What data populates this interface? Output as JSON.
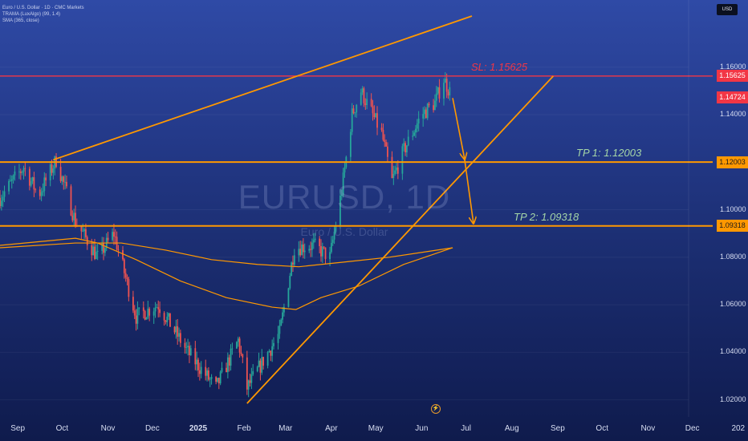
{
  "legend": {
    "line1": "Euro / U.S. Dollar · 1D · CMC Markets",
    "line2": "TRAMA (LuxAlgo) (99, 1.4)",
    "line3": "SMA (365, close)"
  },
  "currency_badge": "USD",
  "watermark": {
    "symbol": "EURUSD, 1D",
    "name": "Euro / U.S. Dollar"
  },
  "colors": {
    "up": "#26a69a",
    "down": "#ef5350",
    "sl_line": "#f23645",
    "orange": "#ff9800",
    "tp_text": "#a5d6a7"
  },
  "levels": {
    "sl": {
      "label": "SL: 1.15625",
      "value": 1.15625,
      "tag": "1.15625"
    },
    "current": {
      "value": 1.14724,
      "tag": "1.14724"
    },
    "tp1": {
      "label": "TP 1: 1.12003",
      "value": 1.12003,
      "tag": "1.12003"
    },
    "tp2": {
      "label": "TP 2: 1.09318",
      "value": 1.09318,
      "tag": "1.09318"
    }
  },
  "chart_data": {
    "type": "candlestick",
    "title": "EURUSD, 1D",
    "x_labels": [
      "Sep",
      "Oct",
      "Nov",
      "Dec",
      "2025",
      "Feb",
      "Mar",
      "Apr",
      "May",
      "Jun",
      "Jul",
      "Aug",
      "Sep",
      "Oct",
      "Nov",
      "Dec",
      "202"
    ],
    "y_ticks": [
      "1.16000",
      "1.14000",
      "1.10000",
      "1.08000",
      "1.06000",
      "1.04000",
      "1.02000"
    ],
    "y_tick_values": [
      1.16,
      1.14,
      1.1,
      1.08,
      1.06,
      1.04,
      1.02
    ],
    "ylim": [
      1.0128,
      1.1815
    ],
    "price_path": [
      {
        "date": "2024-08-20",
        "close": 1.105
      },
      {
        "date": "2024-09-05",
        "close": 1.118
      },
      {
        "date": "2024-09-15",
        "close": 1.106
      },
      {
        "date": "2024-09-27",
        "close": 1.121
      },
      {
        "date": "2024-10-10",
        "close": 1.095
      },
      {
        "date": "2024-10-25",
        "close": 1.08
      },
      {
        "date": "2024-11-05",
        "close": 1.09
      },
      {
        "date": "2024-11-20",
        "close": 1.055
      },
      {
        "date": "2024-12-05",
        "close": 1.06
      },
      {
        "date": "2024-12-25",
        "close": 1.04
      },
      {
        "date": "2025-01-13",
        "close": 1.025
      },
      {
        "date": "2025-01-28",
        "close": 1.045
      },
      {
        "date": "2025-02-03",
        "close": 1.025
      },
      {
        "date": "2025-02-25",
        "close": 1.048
      },
      {
        "date": "2025-03-07",
        "close": 1.084
      },
      {
        "date": "2025-03-20",
        "close": 1.085
      },
      {
        "date": "2025-03-31",
        "close": 1.08
      },
      {
        "date": "2025-04-08",
        "close": 1.108
      },
      {
        "date": "2025-04-15",
        "close": 1.14
      },
      {
        "date": "2025-04-21",
        "close": 1.15
      },
      {
        "date": "2025-05-05",
        "close": 1.132
      },
      {
        "date": "2025-05-12",
        "close": 1.112
      },
      {
        "date": "2025-05-20",
        "close": 1.125
      },
      {
        "date": "2025-06-01",
        "close": 1.14
      },
      {
        "date": "2025-06-10",
        "close": 1.145
      },
      {
        "date": "2025-06-16",
        "close": 1.155
      },
      {
        "date": "2025-06-22",
        "close": 1.147
      }
    ],
    "sma_365": [
      {
        "date": "2024-08-20",
        "value": 1.084
      },
      {
        "date": "2024-10-10",
        "value": 1.086
      },
      {
        "date": "2024-11-10",
        "value": 1.086
      },
      {
        "date": "2024-12-10",
        "value": 1.083
      },
      {
        "date": "2025-01-10",
        "value": 1.079
      },
      {
        "date": "2025-02-10",
        "value": 1.077
      },
      {
        "date": "2025-03-10",
        "value": 1.076
      },
      {
        "date": "2025-04-10",
        "value": 1.078
      },
      {
        "date": "2025-05-10",
        "value": 1.08
      },
      {
        "date": "2025-06-22",
        "value": 1.084
      }
    ],
    "trama": [
      {
        "date": "2024-08-20",
        "value": 1.085
      },
      {
        "date": "2024-10-10",
        "value": 1.088
      },
      {
        "date": "2024-10-25",
        "value": 1.086
      },
      {
        "date": "2024-11-20",
        "value": 1.079
      },
      {
        "date": "2024-12-20",
        "value": 1.07
      },
      {
        "date": "2025-01-20",
        "value": 1.063
      },
      {
        "date": "2025-02-20",
        "value": 1.059
      },
      {
        "date": "2025-03-08",
        "value": 1.058
      },
      {
        "date": "2025-03-25",
        "value": 1.063
      },
      {
        "date": "2025-04-20",
        "value": 1.068
      },
      {
        "date": "2025-05-20",
        "value": 1.077
      },
      {
        "date": "2025-06-22",
        "value": 1.084
      }
    ],
    "trendlines": [
      {
        "name": "upper-channel",
        "from": {
          "date": "2024-09-25",
          "value": 1.121
        },
        "to": {
          "date": "2025-07-05",
          "value": 1.1815
        }
      },
      {
        "name": "rising-support",
        "from": {
          "date": "2025-02-03",
          "value": 1.0185
        },
        "to": {
          "date": "2025-08-29",
          "value": 1.15625
        }
      }
    ],
    "projection": [
      {
        "date": "2025-06-22",
        "value": 1.147
      },
      {
        "date": "2025-06-30",
        "value": 1.1215
      },
      {
        "date": "2025-07-06",
        "value": 1.0945
      }
    ]
  }
}
